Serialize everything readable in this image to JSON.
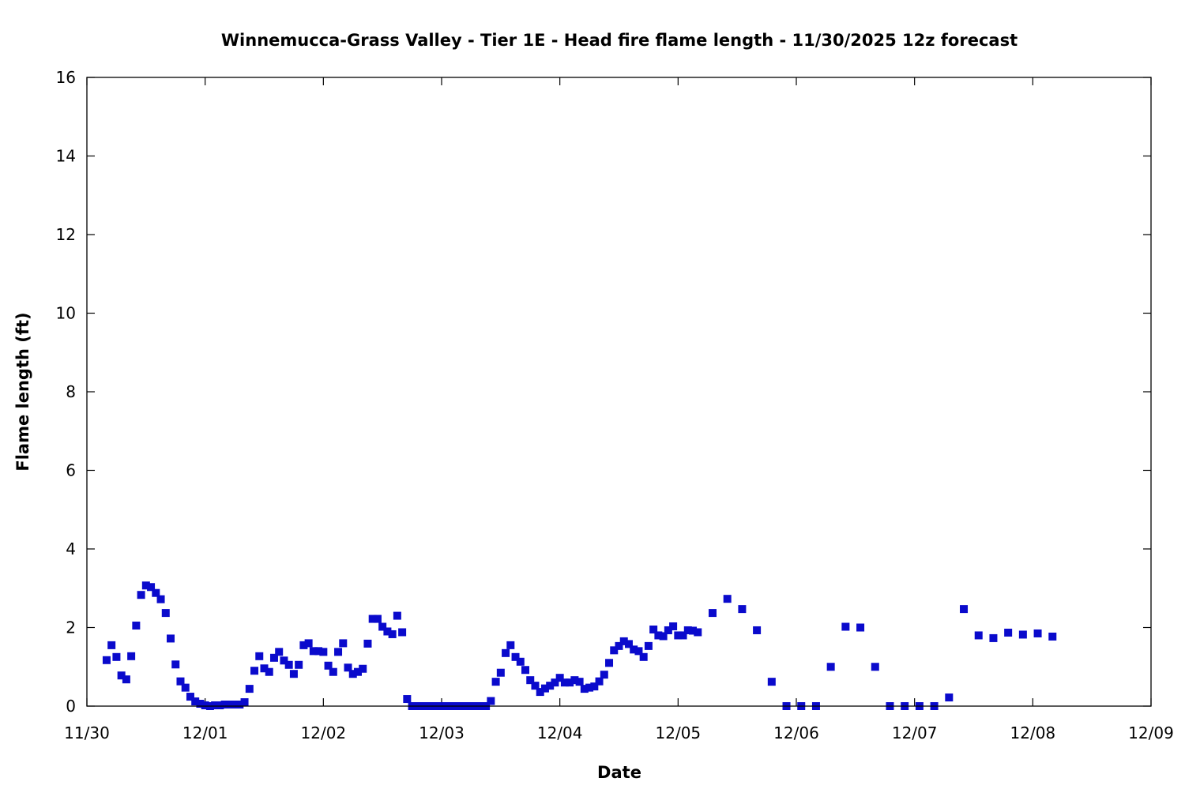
{
  "chart_data": {
    "type": "scatter",
    "title": "Winnemucca-Grass Valley - Tier 1E - Head fire flame length - 11/30/2025 12z forecast",
    "xlabel": "Date",
    "ylabel": "Flame length (ft)",
    "xlim": [
      "11/30 00:00",
      "12/09 00:00"
    ],
    "ylim": [
      0,
      16
    ],
    "xticks": [
      "11/30",
      "12/01",
      "12/02",
      "12/03",
      "12/04",
      "12/05",
      "12/06",
      "12/07",
      "12/08",
      "12/09"
    ],
    "yticks": [
      0,
      2,
      4,
      6,
      8,
      10,
      12,
      14,
      16
    ],
    "grid": false,
    "marker_color": "#0a0acc",
    "x": [
      "11/30 04:00",
      "11/30 05:00",
      "11/30 06:00",
      "11/30 07:00",
      "11/30 08:00",
      "11/30 09:00",
      "11/30 10:00",
      "11/30 11:00",
      "11/30 12:00",
      "11/30 13:00",
      "11/30 14:00",
      "11/30 15:00",
      "11/30 16:00",
      "11/30 17:00",
      "11/30 18:00",
      "11/30 19:00",
      "11/30 20:00",
      "11/30 21:00",
      "11/30 22:00",
      "11/30 23:00",
      "12/01 00:00",
      "12/01 01:00",
      "12/01 02:00",
      "12/01 03:00",
      "12/01 04:00",
      "12/01 05:00",
      "12/01 06:00",
      "12/01 07:00",
      "12/01 08:00",
      "12/01 09:00",
      "12/01 10:00",
      "12/01 11:00",
      "12/01 12:00",
      "12/01 13:00",
      "12/01 14:00",
      "12/01 15:00",
      "12/01 16:00",
      "12/01 17:00",
      "12/01 18:00",
      "12/01 19:00",
      "12/01 20:00",
      "12/01 21:00",
      "12/01 22:00",
      "12/01 23:00",
      "12/02 00:00",
      "12/02 01:00",
      "12/02 02:00",
      "12/02 03:00",
      "12/02 04:00",
      "12/02 05:00",
      "12/02 06:00",
      "12/02 07:00",
      "12/02 08:00",
      "12/02 09:00",
      "12/02 10:00",
      "12/02 11:00",
      "12/02 12:00",
      "12/02 13:00",
      "12/02 14:00",
      "12/02 15:00",
      "12/02 16:00",
      "12/02 17:00",
      "12/02 18:00",
      "12/02 19:00",
      "12/02 20:00",
      "12/02 21:00",
      "12/02 22:00",
      "12/02 23:00",
      "12/03 00:00",
      "12/03 01:00",
      "12/03 02:00",
      "12/03 03:00",
      "12/03 04:00",
      "12/03 05:00",
      "12/03 06:00",
      "12/03 07:00",
      "12/03 08:00",
      "12/03 09:00",
      "12/03 10:00",
      "12/03 11:00",
      "12/03 12:00",
      "12/03 13:00",
      "12/03 14:00",
      "12/03 15:00",
      "12/03 16:00",
      "12/03 17:00",
      "12/03 18:00",
      "12/03 19:00",
      "12/03 20:00",
      "12/03 21:00",
      "12/03 22:00",
      "12/03 23:00",
      "12/04 00:00",
      "12/04 01:00",
      "12/04 02:00",
      "12/04 03:00",
      "12/04 04:00",
      "12/04 05:00",
      "12/04 06:00",
      "12/04 07:00",
      "12/04 08:00",
      "12/04 09:00",
      "12/04 10:00",
      "12/04 11:00",
      "12/04 12:00",
      "12/04 13:00",
      "12/04 14:00",
      "12/04 15:00",
      "12/04 16:00",
      "12/04 17:00",
      "12/04 18:00",
      "12/04 19:00",
      "12/04 20:00",
      "12/04 21:00",
      "12/04 22:00",
      "12/04 23:00",
      "12/05 00:00",
      "12/05 01:00",
      "12/05 02:00",
      "12/05 03:00",
      "12/05 04:00",
      "12/05 07:00",
      "12/05 10:00",
      "12/05 13:00",
      "12/05 16:00",
      "12/05 19:00",
      "12/05 22:00",
      "12/06 01:00",
      "12/06 04:00",
      "12/06 07:00",
      "12/06 10:00",
      "12/06 13:00",
      "12/06 16:00",
      "12/06 19:00",
      "12/06 22:00",
      "12/07 01:00",
      "12/07 04:00",
      "12/07 07:00",
      "12/07 10:00",
      "12/07 13:00",
      "12/07 16:00",
      "12/07 19:00",
      "12/07 22:00",
      "12/08 01:00",
      "12/08 04:00"
    ],
    "y": [
      1.17,
      1.55,
      1.25,
      0.78,
      0.68,
      1.27,
      2.05,
      2.83,
      3.07,
      3.03,
      2.88,
      2.72,
      2.37,
      1.72,
      1.06,
      0.63,
      0.47,
      0.24,
      0.12,
      0.06,
      0.02,
      0,
      0.02,
      0.02,
      0.04,
      0.04,
      0.04,
      0.04,
      0.1,
      0.44,
      0.9,
      1.27,
      0.96,
      0.87,
      1.23,
      1.38,
      1.16,
      1.05,
      0.82,
      1.05,
      1.55,
      1.6,
      1.4,
      1.4,
      1.38,
      1.03,
      0.87,
      1.38,
      1.6,
      0.98,
      0.82,
      0.87,
      0.95,
      1.59,
      2.22,
      2.22,
      2.02,
      1.9,
      1.83,
      2.3,
      1.88,
      0.18,
      0,
      0,
      0,
      0,
      0,
      0,
      0,
      0,
      0,
      0,
      0,
      0,
      0,
      0,
      0,
      0,
      0.13,
      0.62,
      0.85,
      1.35,
      1.55,
      1.25,
      1.13,
      0.92,
      0.66,
      0.52,
      0.36,
      0.45,
      0.52,
      0.6,
      0.72,
      0.6,
      0.6,
      0.66,
      0.62,
      0.44,
      0.47,
      0.5,
      0.63,
      0.8,
      1.1,
      1.42,
      1.53,
      1.65,
      1.58,
      1.44,
      1.4,
      1.25,
      1.53,
      1.95,
      1.8,
      1.78,
      1.93,
      2.03,
      1.8,
      1.8,
      1.93,
      1.92,
      1.88,
      2.37,
      2.73,
      2.47,
      1.93,
      0.62,
      0,
      0,
      0,
      1.0,
      2.02,
      2.0,
      1.0,
      0,
      0,
      0,
      0,
      0.22,
      2.47,
      1.8,
      1.73,
      1.87,
      1.82,
      1.85,
      1.77
    ]
  }
}
